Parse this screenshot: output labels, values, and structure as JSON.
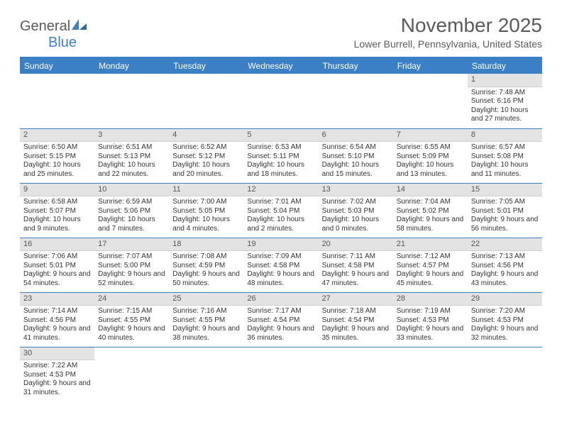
{
  "logo": {
    "text1": "General",
    "text2": "Blue"
  },
  "title": "November 2025",
  "location": "Lower Burrell, Pennsylvania, United States",
  "colors": {
    "header_bg": "#3b7fc4",
    "header_text": "#ffffff",
    "daynum_bg": "#e3e3e3",
    "border": "#3b7fc4",
    "body_text": "#333333",
    "title_text": "#5a5a5a"
  },
  "weekdays": [
    "Sunday",
    "Monday",
    "Tuesday",
    "Wednesday",
    "Thursday",
    "Friday",
    "Saturday"
  ],
  "weeks": [
    [
      null,
      null,
      null,
      null,
      null,
      null,
      {
        "n": "1",
        "sr": "Sunrise: 7:48 AM",
        "ss": "Sunset: 6:16 PM",
        "dl": "Daylight: 10 hours and 27 minutes."
      }
    ],
    [
      {
        "n": "2",
        "sr": "Sunrise: 6:50 AM",
        "ss": "Sunset: 5:15 PM",
        "dl": "Daylight: 10 hours and 25 minutes."
      },
      {
        "n": "3",
        "sr": "Sunrise: 6:51 AM",
        "ss": "Sunset: 5:13 PM",
        "dl": "Daylight: 10 hours and 22 minutes."
      },
      {
        "n": "4",
        "sr": "Sunrise: 6:52 AM",
        "ss": "Sunset: 5:12 PM",
        "dl": "Daylight: 10 hours and 20 minutes."
      },
      {
        "n": "5",
        "sr": "Sunrise: 6:53 AM",
        "ss": "Sunset: 5:11 PM",
        "dl": "Daylight: 10 hours and 18 minutes."
      },
      {
        "n": "6",
        "sr": "Sunrise: 6:54 AM",
        "ss": "Sunset: 5:10 PM",
        "dl": "Daylight: 10 hours and 15 minutes."
      },
      {
        "n": "7",
        "sr": "Sunrise: 6:55 AM",
        "ss": "Sunset: 5:09 PM",
        "dl": "Daylight: 10 hours and 13 minutes."
      },
      {
        "n": "8",
        "sr": "Sunrise: 6:57 AM",
        "ss": "Sunset: 5:08 PM",
        "dl": "Daylight: 10 hours and 11 minutes."
      }
    ],
    [
      {
        "n": "9",
        "sr": "Sunrise: 6:58 AM",
        "ss": "Sunset: 5:07 PM",
        "dl": "Daylight: 10 hours and 9 minutes."
      },
      {
        "n": "10",
        "sr": "Sunrise: 6:59 AM",
        "ss": "Sunset: 5:06 PM",
        "dl": "Daylight: 10 hours and 7 minutes."
      },
      {
        "n": "11",
        "sr": "Sunrise: 7:00 AM",
        "ss": "Sunset: 5:05 PM",
        "dl": "Daylight: 10 hours and 4 minutes."
      },
      {
        "n": "12",
        "sr": "Sunrise: 7:01 AM",
        "ss": "Sunset: 5:04 PM",
        "dl": "Daylight: 10 hours and 2 minutes."
      },
      {
        "n": "13",
        "sr": "Sunrise: 7:02 AM",
        "ss": "Sunset: 5:03 PM",
        "dl": "Daylight: 10 hours and 0 minutes."
      },
      {
        "n": "14",
        "sr": "Sunrise: 7:04 AM",
        "ss": "Sunset: 5:02 PM",
        "dl": "Daylight: 9 hours and 58 minutes."
      },
      {
        "n": "15",
        "sr": "Sunrise: 7:05 AM",
        "ss": "Sunset: 5:01 PM",
        "dl": "Daylight: 9 hours and 56 minutes."
      }
    ],
    [
      {
        "n": "16",
        "sr": "Sunrise: 7:06 AM",
        "ss": "Sunset: 5:01 PM",
        "dl": "Daylight: 9 hours and 54 minutes."
      },
      {
        "n": "17",
        "sr": "Sunrise: 7:07 AM",
        "ss": "Sunset: 5:00 PM",
        "dl": "Daylight: 9 hours and 52 minutes."
      },
      {
        "n": "18",
        "sr": "Sunrise: 7:08 AM",
        "ss": "Sunset: 4:59 PM",
        "dl": "Daylight: 9 hours and 50 minutes."
      },
      {
        "n": "19",
        "sr": "Sunrise: 7:09 AM",
        "ss": "Sunset: 4:58 PM",
        "dl": "Daylight: 9 hours and 48 minutes."
      },
      {
        "n": "20",
        "sr": "Sunrise: 7:11 AM",
        "ss": "Sunset: 4:58 PM",
        "dl": "Daylight: 9 hours and 47 minutes."
      },
      {
        "n": "21",
        "sr": "Sunrise: 7:12 AM",
        "ss": "Sunset: 4:57 PM",
        "dl": "Daylight: 9 hours and 45 minutes."
      },
      {
        "n": "22",
        "sr": "Sunrise: 7:13 AM",
        "ss": "Sunset: 4:56 PM",
        "dl": "Daylight: 9 hours and 43 minutes."
      }
    ],
    [
      {
        "n": "23",
        "sr": "Sunrise: 7:14 AM",
        "ss": "Sunset: 4:56 PM",
        "dl": "Daylight: 9 hours and 41 minutes."
      },
      {
        "n": "24",
        "sr": "Sunrise: 7:15 AM",
        "ss": "Sunset: 4:55 PM",
        "dl": "Daylight: 9 hours and 40 minutes."
      },
      {
        "n": "25",
        "sr": "Sunrise: 7:16 AM",
        "ss": "Sunset: 4:55 PM",
        "dl": "Daylight: 9 hours and 38 minutes."
      },
      {
        "n": "26",
        "sr": "Sunrise: 7:17 AM",
        "ss": "Sunset: 4:54 PM",
        "dl": "Daylight: 9 hours and 36 minutes."
      },
      {
        "n": "27",
        "sr": "Sunrise: 7:18 AM",
        "ss": "Sunset: 4:54 PM",
        "dl": "Daylight: 9 hours and 35 minutes."
      },
      {
        "n": "28",
        "sr": "Sunrise: 7:19 AM",
        "ss": "Sunset: 4:53 PM",
        "dl": "Daylight: 9 hours and 33 minutes."
      },
      {
        "n": "29",
        "sr": "Sunrise: 7:20 AM",
        "ss": "Sunset: 4:53 PM",
        "dl": "Daylight: 9 hours and 32 minutes."
      }
    ],
    [
      {
        "n": "30",
        "sr": "Sunrise: 7:22 AM",
        "ss": "Sunset: 4:53 PM",
        "dl": "Daylight: 9 hours and 31 minutes."
      },
      null,
      null,
      null,
      null,
      null,
      null
    ]
  ]
}
